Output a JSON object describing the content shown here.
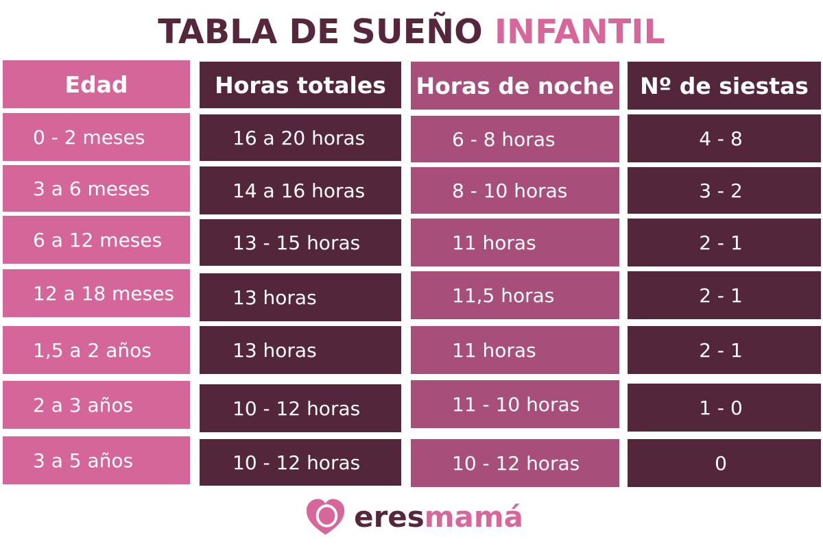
{
  "title": {
    "part1": "TABLA DE SUEÑO",
    "part2": "INFANTIL"
  },
  "headers": {
    "edad": "Edad",
    "horas_totales": "Horas totales",
    "horas_noche": "Horas de noche",
    "siestas": "Nº de siestas"
  },
  "rows": [
    {
      "edad": "0 - 2 meses",
      "total": "16 a 20 horas",
      "noche": "6 - 8 horas",
      "siestas": "4 - 8"
    },
    {
      "edad": "3 a 6 meses",
      "total": "14 a 16 horas",
      "noche": "8 - 10 horas",
      "siestas": "3 - 2"
    },
    {
      "edad": "6 a 12 meses",
      "total": "13 - 15 horas",
      "noche": "11 horas",
      "siestas": "2 - 1"
    },
    {
      "edad": "12 a 18 meses",
      "total": "13 horas",
      "noche": "11,5 horas",
      "siestas": "2 - 1"
    },
    {
      "edad": "1,5 a 2 años",
      "total": "13 horas",
      "noche": "11 horas",
      "siestas": "2 - 1"
    },
    {
      "edad": "2 a 3 años",
      "total": "10 - 12 horas",
      "noche": "11 - 10 horas",
      "siestas": "1 - 0"
    },
    {
      "edad": "3 a 5 años",
      "total": "10 - 12 horas",
      "noche": "10 - 12 horas",
      "siestas": "0"
    }
  ],
  "logo": {
    "eres": "eres",
    "mama": "mamá",
    "icon": "heart-logo-icon"
  },
  "colors": {
    "pink": "#d4669a",
    "dark": "#54263c",
    "mauve": "#a84e7b",
    "title_dark": "#56263d",
    "title_pink": "#d7669b"
  }
}
